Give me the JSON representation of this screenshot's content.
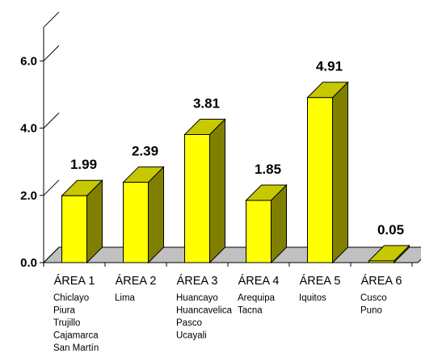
{
  "chart_data": {
    "type": "bar",
    "style": "3d",
    "title": "",
    "xlabel": "",
    "ylabel": "",
    "ylim": [
      0,
      7
    ],
    "y_ticks": [
      "0.0",
      "2.0",
      "4.0",
      "6.0"
    ],
    "grid": false,
    "legend": "none",
    "categories": [
      "ÁREA 1",
      "ÁREA 2",
      "ÁREA 3",
      "ÁREA 4",
      "ÁREA 5",
      "ÁREA 6"
    ],
    "values": [
      1.99,
      2.39,
      3.81,
      1.85,
      4.91,
      0.05
    ],
    "value_labels": [
      "1.99",
      "2.39",
      "3.81",
      "1.85",
      "4.91",
      "0.05"
    ],
    "category_cities": [
      [
        "Chiclayo",
        "Piura",
        "Trujillo",
        "Cajamarca",
        "San Martín"
      ],
      [
        "Lima"
      ],
      [
        "Huancayo",
        "Huancavelica",
        "Pasco",
        "Ucayali"
      ],
      [
        "Arequipa",
        "Tacna"
      ],
      [
        "Iquitos"
      ],
      [
        "Cusco",
        "Puno"
      ]
    ],
    "colors": {
      "bar_front": "#ffff00",
      "bar_side": "#808000",
      "bar_top": "#c8c800",
      "floor": "#c0c0c0",
      "axis": "#000000"
    }
  }
}
